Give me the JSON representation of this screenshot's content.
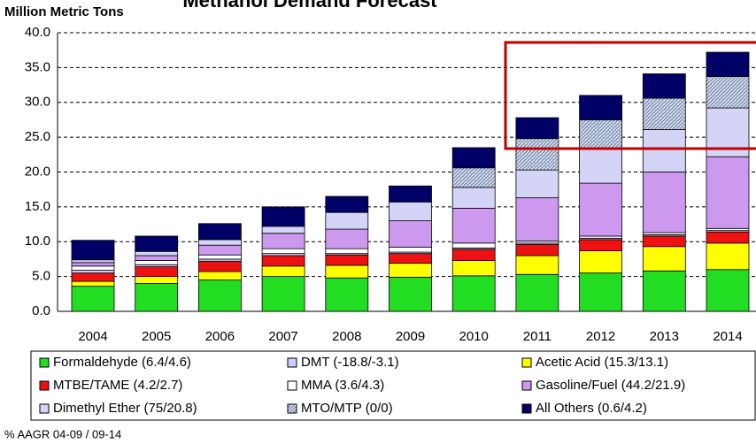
{
  "chart_data": {
    "type": "stacked_bar",
    "title": "Methanol Demand Forecast",
    "y_label": "Million Metric Tons",
    "footnote": "% AAGR 04-09 / 09-14",
    "categories": [
      "2004",
      "2005",
      "2006",
      "2007",
      "2008",
      "2009",
      "2010",
      "2011",
      "2012",
      "2013",
      "2014"
    ],
    "ylim": [
      0,
      40
    ],
    "yticks": [
      {
        "value": 0,
        "label": "0.0"
      },
      {
        "value": 5,
        "label": "5.0"
      },
      {
        "value": 10,
        "label": "10.0"
      },
      {
        "value": 15,
        "label": "15.0"
      },
      {
        "value": 20,
        "label": "20.0"
      },
      {
        "value": 25,
        "label": "25.0"
      },
      {
        "value": 30,
        "label": "30.0"
      },
      {
        "value": 35,
        "label": "35.0"
      },
      {
        "value": 40,
        "label": "40.0"
      }
    ],
    "grid": true,
    "series": [
      {
        "name": "Formaldehyde (6.4/4.6)",
        "color": "#22dd22",
        "values": [
          3.6,
          4.0,
          4.5,
          5.0,
          4.8,
          4.9,
          5.1,
          5.3,
          5.5,
          5.8,
          6.0
        ]
      },
      {
        "name": "Acetic Acid (15.3/13.1)",
        "color": "#ffff00",
        "values": [
          0.7,
          1.0,
          1.2,
          1.5,
          1.8,
          2.0,
          2.2,
          2.7,
          3.2,
          3.5,
          3.8
        ]
      },
      {
        "name": "MTBE/TAME (4.2/2.7)",
        "color": "#ee1111",
        "values": [
          1.2,
          1.4,
          1.5,
          1.5,
          1.5,
          1.4,
          1.6,
          1.6,
          1.6,
          1.5,
          1.6
        ]
      },
      {
        "name": "DMT (-18.8/-3.1)",
        "color": "#ccccff",
        "values": [
          0.4,
          0.3,
          0.3,
          0.3,
          0.2,
          0.2,
          0.2,
          0.2,
          0.2,
          0.2,
          0.2
        ]
      },
      {
        "name": "MMA (3.6/4.3)",
        "color": "#ffffff",
        "values": [
          0.6,
          0.6,
          0.6,
          0.7,
          0.7,
          0.7,
          0.7,
          0.3,
          0.3,
          0.3,
          0.3
        ]
      },
      {
        "name": "Gasoline/Fuel (44.2/21.9)",
        "color": "#cc99ee",
        "values": [
          0.5,
          0.7,
          1.4,
          2.2,
          2.8,
          3.8,
          5.0,
          6.2,
          7.6,
          8.7,
          10.3
        ]
      },
      {
        "name": "Dimethyl Ether (75/20.8)",
        "color": "#d4d4f7",
        "values": [
          0.4,
          0.6,
          0.8,
          1.0,
          2.4,
          2.7,
          3.0,
          4.0,
          4.9,
          6.1,
          7.0
        ]
      },
      {
        "name": "MTO/MTP (0/0)",
        "color": "#8899bb",
        "values": [
          0,
          0,
          0,
          0,
          0,
          0,
          2.8,
          4.5,
          4.2,
          4.5,
          4.5
        ]
      },
      {
        "name": "All Others (0.6/4.2)",
        "color": "#000066",
        "values": [
          2.8,
          2.2,
          2.3,
          2.8,
          2.3,
          2.3,
          2.9,
          3.0,
          3.5,
          3.5,
          3.5
        ]
      }
    ]
  }
}
